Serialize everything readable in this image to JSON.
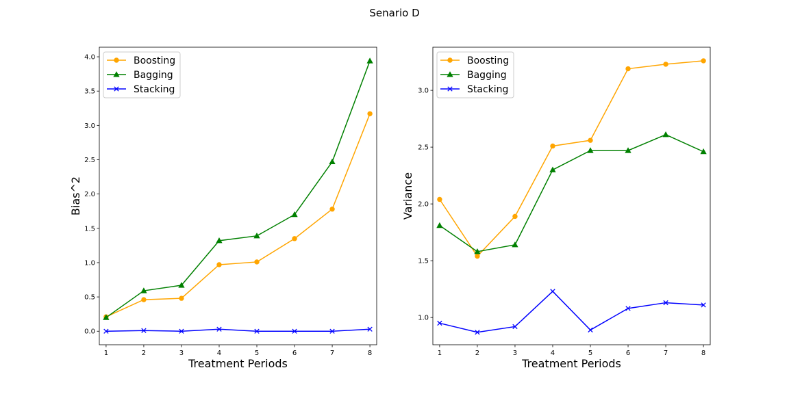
{
  "figure": {
    "title": "Senario D"
  },
  "chart_data": [
    {
      "type": "line",
      "xlabel": "Treatment Periods",
      "ylabel": "Bias^2",
      "x": [
        1,
        2,
        3,
        4,
        5,
        6,
        7,
        8
      ],
      "xlim": [
        0.82,
        8.18
      ],
      "ylim": [
        -0.197,
        4.14
      ],
      "yticks": [
        0.0,
        0.5,
        1.0,
        1.5,
        2.0,
        2.5,
        3.0,
        3.5,
        4.0
      ],
      "ytick_labels": [
        "0.0",
        "0.5",
        "1.0",
        "1.5",
        "2.0",
        "2.5",
        "3.0",
        "3.5",
        "4.0"
      ],
      "legend": "upper left",
      "grid": false,
      "series": [
        {
          "name": "Boosting",
          "color": "#ffa500",
          "marker": "circle",
          "values": [
            0.21,
            0.46,
            0.48,
            0.97,
            1.01,
            1.35,
            1.78,
            3.17
          ]
        },
        {
          "name": "Bagging",
          "color": "#008000",
          "marker": "triangle",
          "values": [
            0.2,
            0.59,
            0.67,
            1.32,
            1.39,
            1.7,
            2.47,
            3.94
          ]
        },
        {
          "name": "Stacking",
          "color": "#0000ff",
          "marker": "x",
          "values": [
            0.0,
            0.01,
            0.0,
            0.03,
            0.0,
            0.0,
            0.0,
            0.03
          ]
        }
      ]
    },
    {
      "type": "line",
      "xlabel": "Treatment Periods",
      "ylabel": "Variance",
      "x": [
        1,
        2,
        3,
        4,
        5,
        6,
        7,
        8
      ],
      "xlim": [
        0.82,
        8.18
      ],
      "ylim": [
        0.76,
        3.38
      ],
      "yticks": [
        1.0,
        1.5,
        2.0,
        2.5,
        3.0
      ],
      "ytick_labels": [
        "1.0",
        "1.5",
        "2.0",
        "2.5",
        "3.0"
      ],
      "legend": "upper left",
      "grid": false,
      "series": [
        {
          "name": "Boosting",
          "color": "#ffa500",
          "marker": "circle",
          "values": [
            2.04,
            1.54,
            1.89,
            2.51,
            2.56,
            3.19,
            3.23,
            3.26
          ]
        },
        {
          "name": "Bagging",
          "color": "#008000",
          "marker": "triangle",
          "values": [
            1.81,
            1.58,
            1.64,
            2.3,
            2.47,
            2.47,
            2.61,
            2.46
          ]
        },
        {
          "name": "Stacking",
          "color": "#0000ff",
          "marker": "x",
          "values": [
            0.95,
            0.87,
            0.92,
            1.23,
            0.89,
            1.08,
            1.13,
            1.11
          ]
        }
      ]
    }
  ]
}
